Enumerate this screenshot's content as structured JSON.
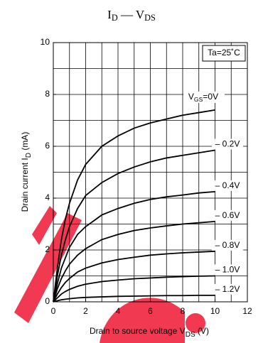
{
  "chart_data": {
    "type": "line",
    "title": [
      "I",
      "D",
      " — V",
      "DS"
    ],
    "xlabel": [
      "Drain to source voltage  V",
      "DS",
      "  (V)"
    ],
    "ylabel": [
      "Drain current  I",
      "D",
      "  (mA)"
    ],
    "annotation": "Ta=25˚C",
    "x": [
      0,
      0.25,
      0.5,
      0.75,
      1,
      1.5,
      2,
      3,
      4,
      5,
      6,
      7,
      8,
      9,
      10
    ],
    "series": [
      {
        "name": [
          "V",
          "GS",
          "=0V"
        ],
        "color": "#000000",
        "values": [
          0,
          1.3,
          2.4,
          3.2,
          3.8,
          4.7,
          5.3,
          6.0,
          6.4,
          6.7,
          6.9,
          7.05,
          7.2,
          7.3,
          7.4
        ]
      },
      {
        "name": [
          "– 0.2V"
        ],
        "color": "#000000",
        "values": [
          0,
          1.0,
          1.8,
          2.4,
          2.9,
          3.6,
          4.1,
          4.6,
          4.95,
          5.2,
          5.4,
          5.55,
          5.65,
          5.75,
          5.85
        ]
      },
      {
        "name": [
          "– 0.4V"
        ],
        "color": "#000000",
        "values": [
          0,
          0.7,
          1.3,
          1.7,
          2.1,
          2.6,
          2.9,
          3.35,
          3.6,
          3.8,
          3.95,
          4.05,
          4.12,
          4.2,
          4.25
        ]
      },
      {
        "name": [
          "– 0.6V"
        ],
        "color": "#000000",
        "values": [
          0,
          0.5,
          0.9,
          1.2,
          1.45,
          1.8,
          2.05,
          2.4,
          2.6,
          2.75,
          2.85,
          2.93,
          3.0,
          3.05,
          3.1
        ]
      },
      {
        "name": [
          "– 0.8V"
        ],
        "color": "#000000",
        "values": [
          0,
          0.3,
          0.55,
          0.75,
          0.9,
          1.15,
          1.3,
          1.5,
          1.63,
          1.72,
          1.8,
          1.85,
          1.89,
          1.92,
          1.95
        ]
      },
      {
        "name": [
          "– 1.0V"
        ],
        "color": "#000000",
        "values": [
          0,
          0.15,
          0.3,
          0.4,
          0.48,
          0.6,
          0.68,
          0.78,
          0.84,
          0.89,
          0.92,
          0.95,
          0.97,
          0.99,
          1.0
        ]
      },
      {
        "name": [
          "– 1.2V"
        ],
        "color": "#000000",
        "values": [
          0,
          0.04,
          0.08,
          0.1,
          0.12,
          0.15,
          0.17,
          0.19,
          0.21,
          0.22,
          0.23,
          0.24,
          0.24,
          0.25,
          0.25
        ]
      }
    ],
    "xlim": [
      0,
      12
    ],
    "xticks": [
      0,
      2,
      4,
      6,
      8,
      10,
      12
    ],
    "ylim": [
      0,
      10
    ],
    "yticks": [
      0,
      2,
      4,
      6,
      8,
      10
    ],
    "grid_step_x": 1,
    "grid_step_y": 1
  }
}
